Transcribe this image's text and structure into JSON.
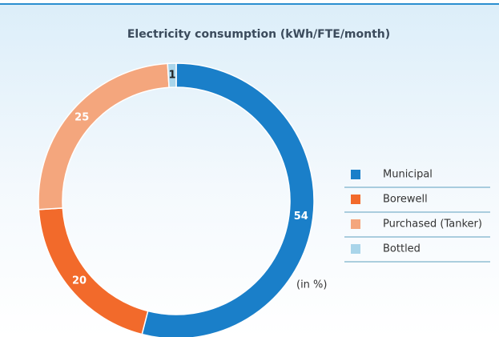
{
  "chart_data": {
    "type": "pie",
    "title": "Electricity consumption (kWh/FTE/month)",
    "categories": [
      "Municipal",
      "Borewell",
      "Purchased (Tanker)",
      "Bottled"
    ],
    "values": [
      54,
      20,
      25,
      1
    ],
    "colors": [
      "#1a7fc9",
      "#f26a2b",
      "#f4a67d",
      "#a9d5ea"
    ],
    "annotation": "(in %)",
    "donut": true,
    "legend": "right"
  }
}
